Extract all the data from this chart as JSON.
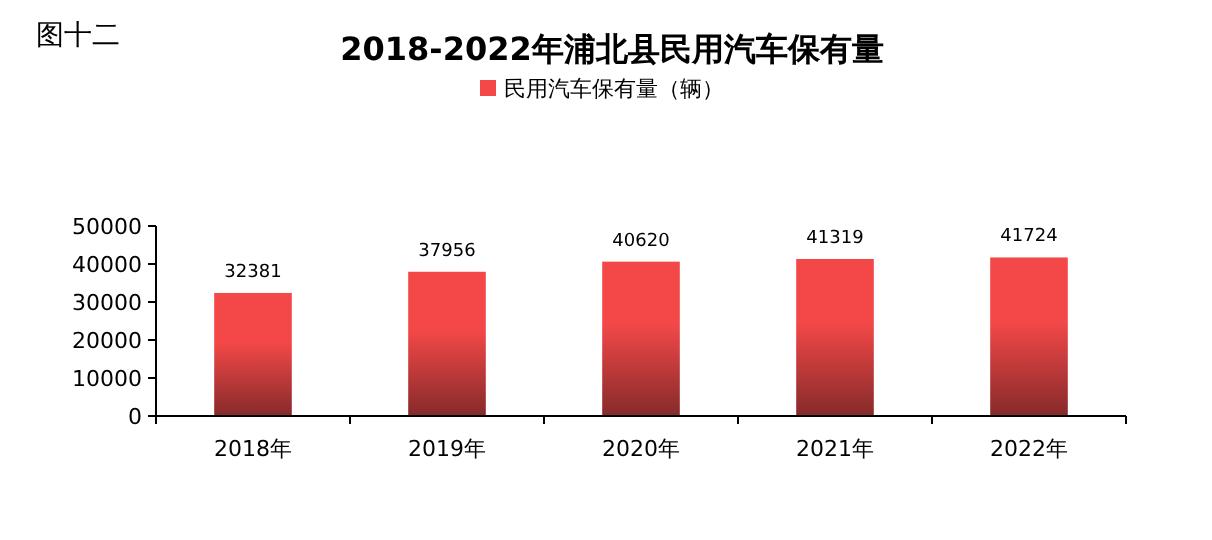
{
  "chart_data": {
    "type": "bar",
    "title": "2018-2022年浦北县民用汽车保有量",
    "annotations": [
      "图十二"
    ],
    "categories": [
      "2018年",
      "2019年",
      "2020年",
      "2021年",
      "2022年"
    ],
    "series": [
      {
        "name": "民用汽车保有量（辆）",
        "color": "#f44848",
        "values": [
          32381,
          37956,
          40620,
          41319,
          41724
        ]
      }
    ],
    "ylim": [
      0,
      50000
    ],
    "yticks": [
      0,
      10000,
      20000,
      30000,
      40000,
      50000
    ],
    "data_labels": true,
    "legend": "top",
    "grid": false
  }
}
